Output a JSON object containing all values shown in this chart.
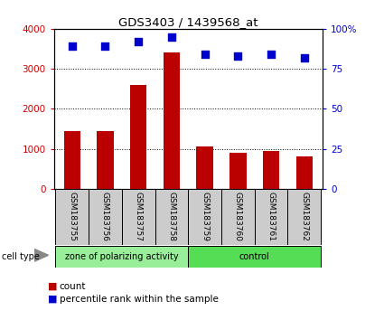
{
  "title": "GDS3403 / 1439568_at",
  "samples": [
    "GSM183755",
    "GSM183756",
    "GSM183757",
    "GSM183758",
    "GSM183759",
    "GSM183760",
    "GSM183761",
    "GSM183762"
  ],
  "counts": [
    1450,
    1450,
    2600,
    3400,
    1050,
    900,
    950,
    800
  ],
  "percentile_ranks": [
    89,
    89,
    92,
    95,
    84,
    83,
    84,
    82
  ],
  "ylim_left": [
    0,
    4000
  ],
  "ylim_right": [
    0,
    100
  ],
  "yticks_left": [
    0,
    1000,
    2000,
    3000,
    4000
  ],
  "yticks_right": [
    0,
    25,
    50,
    75,
    100
  ],
  "bar_color": "#bb0000",
  "dot_color": "#0000cc",
  "group1_label": "zone of polarizing activity",
  "group2_label": "control",
  "group1_color": "#99ee99",
  "group2_color": "#55dd55",
  "group1_indices": [
    0,
    1,
    2,
    3
  ],
  "group2_indices": [
    4,
    5,
    6,
    7
  ],
  "cell_type_label": "cell type",
  "legend_count_label": "count",
  "legend_pct_label": "percentile rank within the sample",
  "background_color": "#ffffff",
  "tick_color_left": "#cc0000",
  "tick_color_right": "#0000cc",
  "grid_color": "#000000",
  "sample_box_color": "#cccccc",
  "bar_width": 0.5,
  "dot_size": 30
}
